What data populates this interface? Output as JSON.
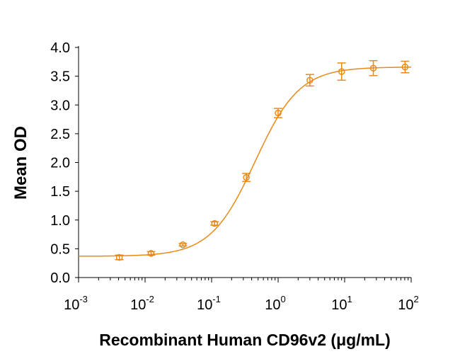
{
  "chart_data": {
    "type": "scatter",
    "title": "",
    "xlabel": "Recombinant Human CD96v2 (μg/mL)",
    "ylabel": "Mean OD",
    "xscale": "log",
    "xlim": [
      0.001,
      100
    ],
    "ylim": [
      0,
      4.0
    ],
    "x_ticks": [
      {
        "base": "10",
        "exp": "-3"
      },
      {
        "base": "10",
        "exp": "-2"
      },
      {
        "base": "10",
        "exp": "-1"
      },
      {
        "base": "10",
        "exp": "0"
      },
      {
        "base": "10",
        "exp": "1"
      },
      {
        "base": "10",
        "exp": "2"
      }
    ],
    "y_ticks": [
      "0.0",
      "0.5",
      "1.0",
      "1.5",
      "2.0",
      "2.5",
      "3.0",
      "3.5",
      "4.0"
    ],
    "grid": false,
    "color": "#E8891A",
    "series": [
      {
        "name": "CD96v2",
        "x": [
          0.0041,
          0.0123,
          0.037,
          0.111,
          0.333,
          1,
          3,
          9,
          27,
          81
        ],
        "y": [
          0.35,
          0.42,
          0.57,
          0.94,
          1.74,
          2.86,
          3.43,
          3.58,
          3.64,
          3.66
        ],
        "error": [
          0.04,
          0.03,
          0.02,
          0.03,
          0.07,
          0.08,
          0.1,
          0.15,
          0.13,
          0.1
        ]
      }
    ],
    "fit": {
      "model": "4PL",
      "bottom": 0.37,
      "top": 3.66,
      "ec50": 0.45,
      "hill": 1.3
    }
  }
}
